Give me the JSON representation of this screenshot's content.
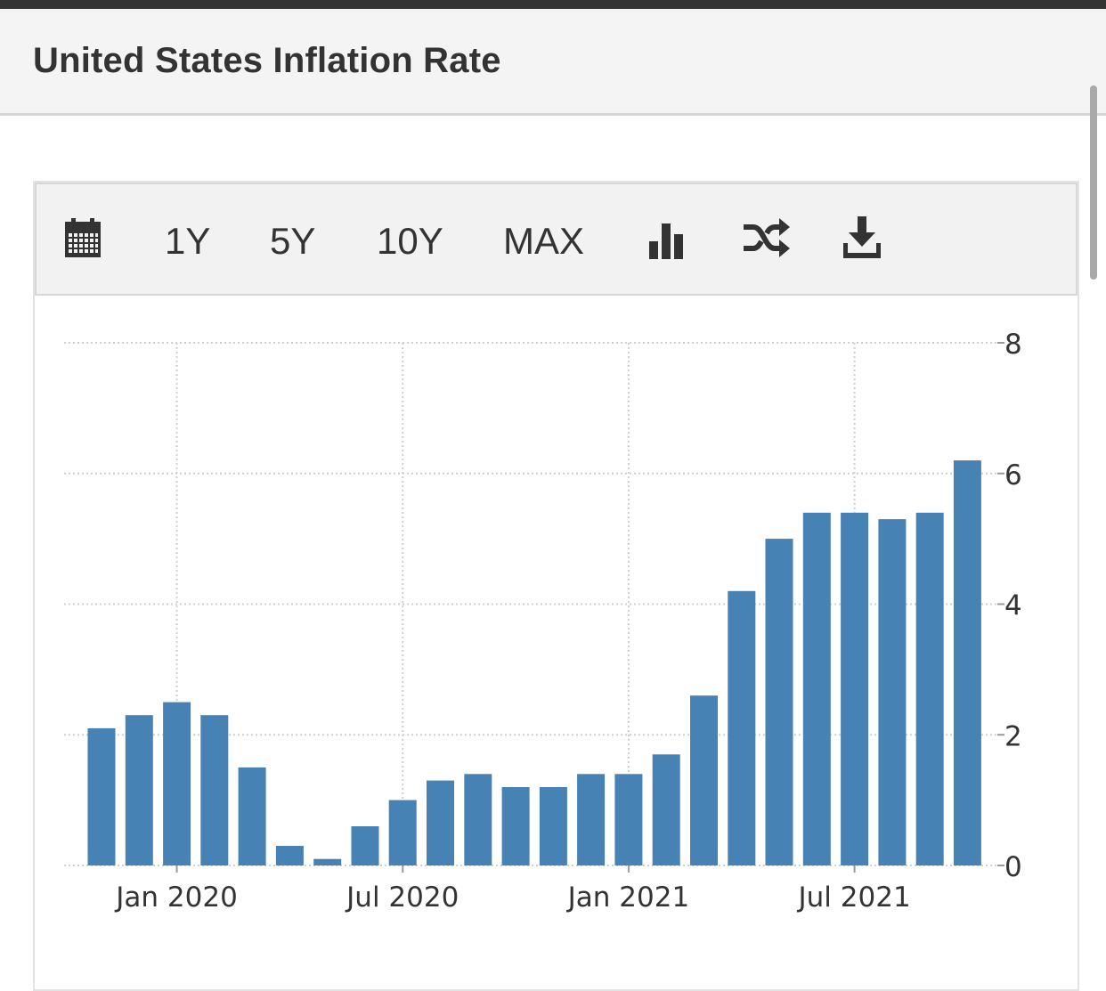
{
  "header": {
    "title": "United States Inflation Rate"
  },
  "toolbar": {
    "calendar_icon": "calendar-icon",
    "ranges": [
      "1Y",
      "5Y",
      "10Y",
      "MAX"
    ],
    "bar_chart_icon": "bar-chart-icon",
    "shuffle_icon": "shuffle-icon",
    "download_icon": "download-icon"
  },
  "colors": {
    "bar": "#4682b4",
    "grid": "#cfcfcf",
    "text": "#333333"
  },
  "chart_data": {
    "type": "bar",
    "title": "United States Inflation Rate",
    "xlabel": "",
    "ylabel": "",
    "ylim": [
      0,
      8
    ],
    "yticks": [
      0,
      2,
      4,
      6,
      8
    ],
    "grid": true,
    "categories": [
      "Nov 2019",
      "Dec 2019",
      "Jan 2020",
      "Feb 2020",
      "Mar 2020",
      "Apr 2020",
      "May 2020",
      "Jun 2020",
      "Jul 2020",
      "Aug 2020",
      "Sep 2020",
      "Oct 2020",
      "Nov 2020",
      "Dec 2020",
      "Jan 2021",
      "Feb 2021",
      "Mar 2021",
      "Apr 2021",
      "May 2021",
      "Jun 2021",
      "Jul 2021",
      "Aug 2021",
      "Sep 2021",
      "Oct 2021"
    ],
    "values": [
      2.1,
      2.3,
      2.5,
      2.3,
      1.5,
      0.3,
      0.1,
      0.6,
      1.0,
      1.3,
      1.4,
      1.2,
      1.2,
      1.4,
      1.4,
      1.7,
      2.6,
      4.2,
      5.0,
      5.4,
      5.4,
      5.3,
      5.4,
      6.2
    ],
    "x_tick_labels": [
      {
        "label": "Jan 2020",
        "category": "Jan 2020"
      },
      {
        "label": "Jul 2020",
        "category": "Jul 2020"
      },
      {
        "label": "Jan 2021",
        "category": "Jan 2021"
      },
      {
        "label": "Jul 2021",
        "category": "Jul 2021"
      }
    ]
  }
}
